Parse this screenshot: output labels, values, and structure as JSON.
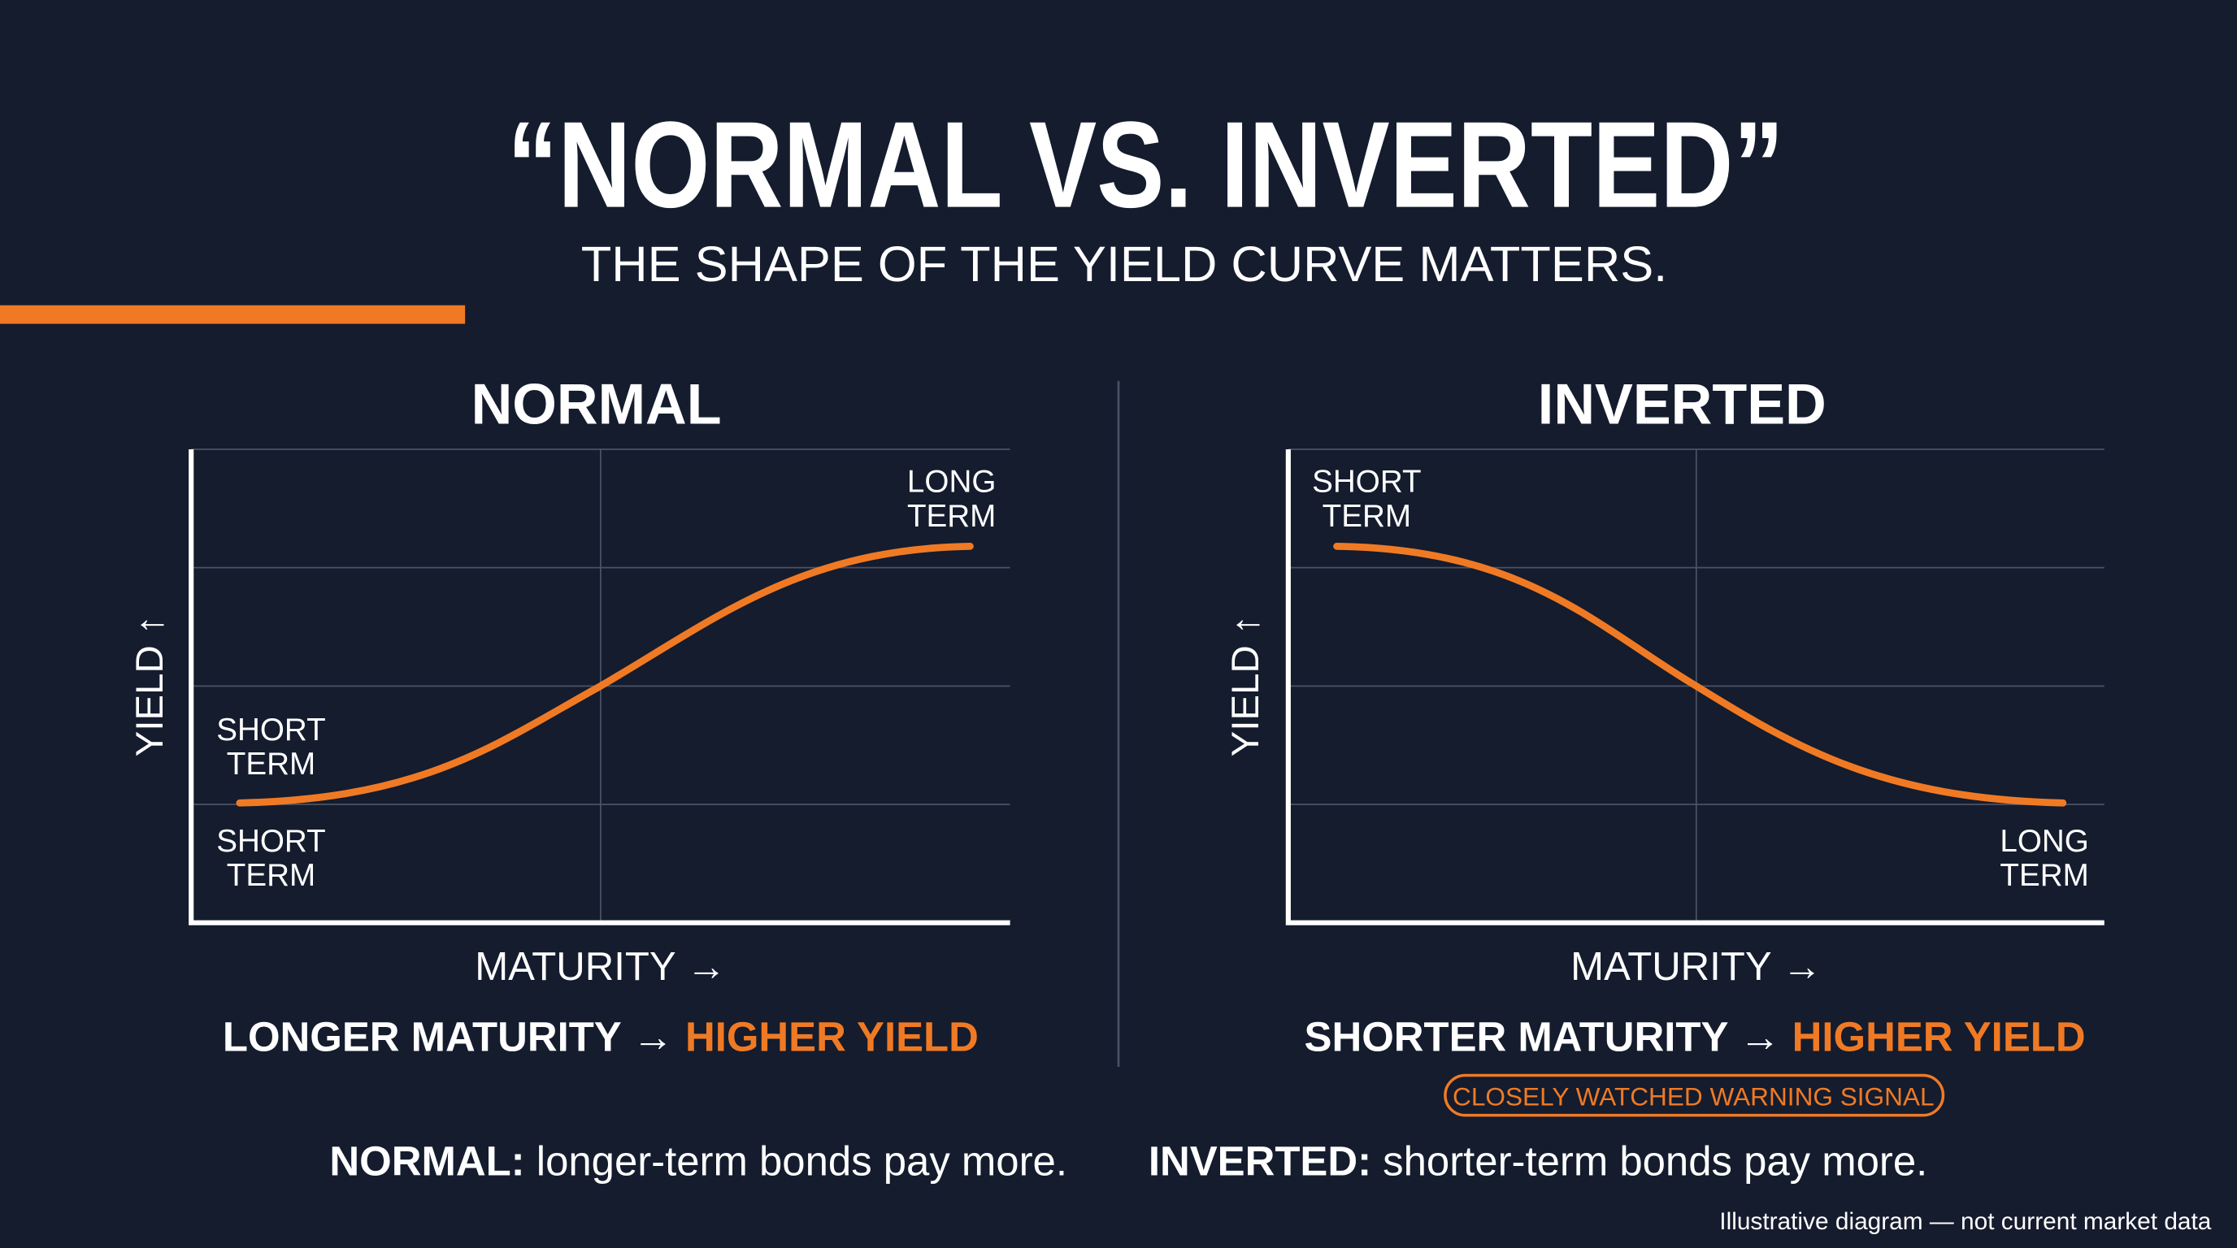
{
  "header": {
    "title": "“NORMAL VS. INVERTED”",
    "subtitle": "THE SHAPE OF THE YIELD CURVE MATTERS."
  },
  "panels": [
    {
      "title": "NORMAL",
      "y_axis": "YIELD ↑",
      "x_axis": "MATURITY →",
      "labels": [
        {
          "lines": [
            "SHORT",
            "TERM"
          ]
        },
        {
          "lines": [
            "SHORT",
            "TERM"
          ]
        },
        {
          "lines": [
            "LONG",
            "TERM"
          ]
        }
      ],
      "caption": {
        "lead": "LONGER MATURITY →",
        "emphasis": "HIGHER YIELD"
      }
    },
    {
      "title": "INVERTED",
      "y_axis": "YIELD ↑",
      "x_axis": "MATURITY →",
      "labels": [
        {
          "lines": [
            "SHORT",
            "TERM"
          ]
        },
        {
          "lines": [
            "LONG",
            "TERM"
          ]
        }
      ],
      "caption": {
        "lead": "SHORTER MATURITY →",
        "emphasis": "HIGHER YIELD"
      },
      "badge": "CLOSELY WATCHED WARNING SIGNAL"
    }
  ],
  "summary": [
    {
      "term": "NORMAL:",
      "text": "longer-term bonds pay more."
    },
    {
      "term": "INVERTED:",
      "text": "shorter-term bonds pay more."
    }
  ],
  "note": "Illustrative diagram — not current market data"
}
